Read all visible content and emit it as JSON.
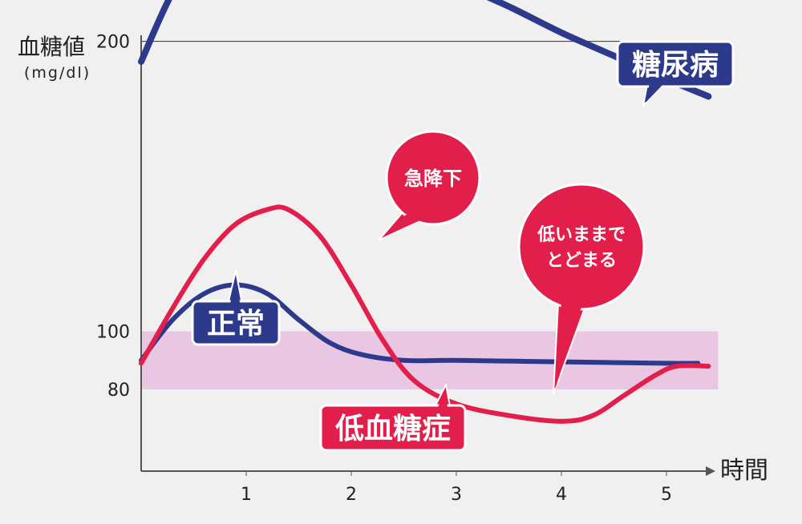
{
  "chart_data": {
    "type": "line",
    "ylabel": "血糖値",
    "yunit": "(mg/dl)",
    "xlabel": "時間",
    "x_ticks": [
      1,
      2,
      3,
      4,
      5
    ],
    "y_ticks": [
      80,
      100,
      200
    ],
    "normal_band": [
      80,
      100
    ],
    "gridlines_y": [
      200
    ],
    "series": [
      {
        "name": "糖尿病",
        "color": "#2d3a8c",
        "x": [
          0,
          0.3,
          0.7,
          1.0,
          1.5,
          2.0,
          2.5,
          3.0,
          3.5,
          4.0,
          4.5,
          5.0,
          5.4
        ],
        "y": [
          193,
          217,
          240,
          245,
          242,
          236,
          228,
          220,
          212,
          203,
          195,
          187,
          181
        ]
      },
      {
        "name": "正常",
        "color": "#2d3a8c",
        "x": [
          0,
          0.3,
          0.6,
          0.9,
          1.2,
          1.5,
          1.8,
          2.1,
          2.5,
          3.0,
          4.0,
          5.0,
          5.3
        ],
        "y": [
          90,
          104,
          113,
          116,
          113,
          104,
          96,
          92,
          90,
          90,
          89.5,
          89,
          89
        ]
      },
      {
        "name": "低血糖症",
        "color": "#e21f4a",
        "x": [
          0,
          0.3,
          0.6,
          0.9,
          1.2,
          1.4,
          1.7,
          2.0,
          2.3,
          2.6,
          3.0,
          3.5,
          4.0,
          4.3,
          4.6,
          4.9,
          5.1,
          5.4
        ],
        "y": [
          89,
          108,
          125,
          137,
          142,
          142,
          133,
          116,
          97,
          83,
          75,
          71,
          69,
          71,
          78,
          85,
          88,
          88
        ]
      }
    ],
    "annotations": [
      {
        "text": "急降下"
      },
      {
        "text_lines": [
          "低いままで",
          "とどまる"
        ]
      }
    ]
  }
}
